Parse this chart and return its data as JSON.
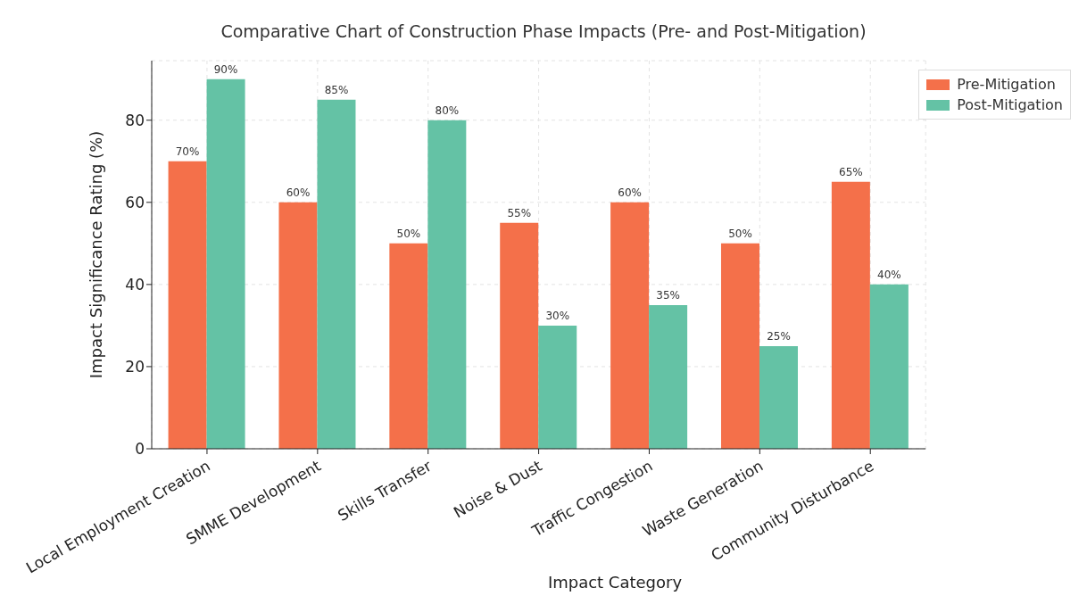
{
  "chart_data": {
    "type": "bar",
    "title": "Comparative Chart of Construction Phase Impacts (Pre- and Post-Mitigation)",
    "xlabel": "Impact Category",
    "ylabel": "Impact Significance Rating (%)",
    "categories": [
      "Local Employment Creation",
      "SMME Development",
      "Skills Transfer",
      "Noise & Dust",
      "Traffic Congestion",
      "Waste Generation",
      "Community Disturbance"
    ],
    "series": [
      {
        "name": "Pre-Mitigation",
        "color": "#f4704a",
        "values": [
          70,
          60,
          50,
          55,
          60,
          50,
          65
        ],
        "value_labels": [
          "70%",
          "60%",
          "50%",
          "55%",
          "60%",
          "50%",
          "65%"
        ]
      },
      {
        "name": "Post-Mitigation",
        "color": "#64c2a5",
        "values": [
          90,
          85,
          80,
          30,
          35,
          25,
          40
        ],
        "value_labels": [
          "90%",
          "85%",
          "80%",
          "30%",
          "35%",
          "25%",
          "40%"
        ]
      }
    ],
    "ylim": [
      0,
      94.5
    ],
    "yticks": [
      0,
      20,
      40,
      60,
      80
    ],
    "grid": true,
    "legend": "top right"
  }
}
